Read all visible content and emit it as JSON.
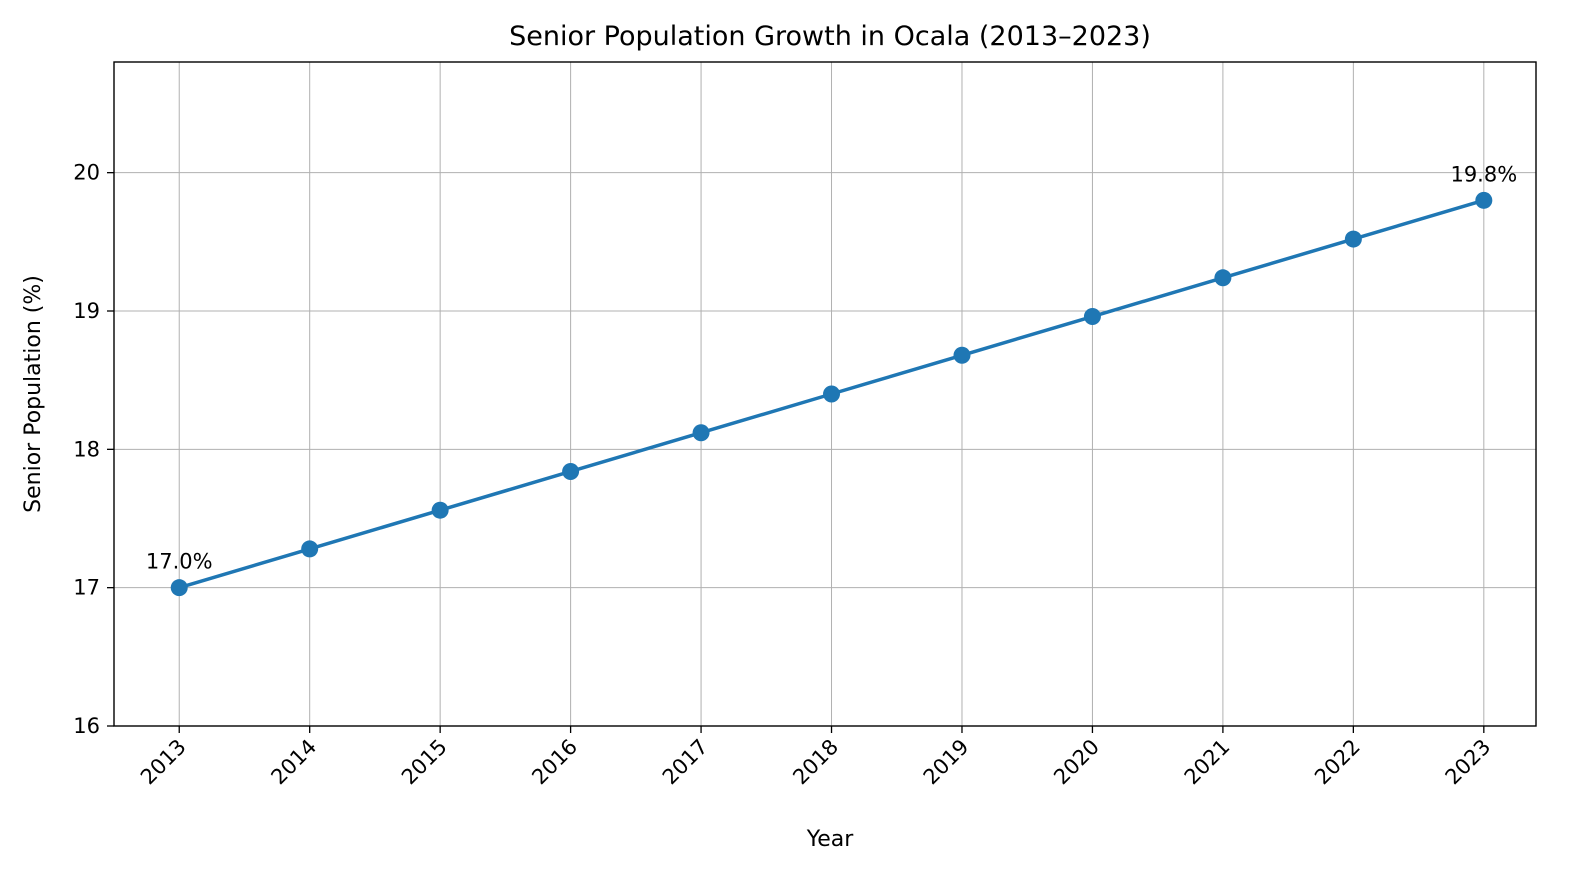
{
  "chart_data": {
    "type": "line",
    "title": "Senior Population Growth in Ocala (2013–2023)",
    "xlabel": "Year",
    "ylabel": "Senior Population (%)",
    "x": [
      2013,
      2014,
      2015,
      2016,
      2017,
      2018,
      2019,
      2020,
      2021,
      2022,
      2023
    ],
    "x_tick_labels": [
      "2013",
      "2014",
      "2015",
      "2016",
      "2017",
      "2018",
      "2019",
      "2020",
      "2021",
      "2022",
      "2023"
    ],
    "series": [
      {
        "values": [
          17.0,
          17.28,
          17.56,
          17.84,
          18.12,
          18.4,
          18.68,
          18.96,
          19.24,
          19.52,
          19.8
        ],
        "color": "#1f77b4",
        "marker": "circle"
      }
    ],
    "y_ticks": [
      16,
      17,
      18,
      19,
      20
    ],
    "ylim": [
      16,
      20.8
    ],
    "xlim": [
      2012.5,
      2023.4
    ],
    "grid": true,
    "x_tick_rotation": 45,
    "annotations": [
      {
        "x": 2013,
        "y": 17.0,
        "text": "17.0%"
      },
      {
        "x": 2023,
        "y": 19.8,
        "text": "19.8%"
      }
    ]
  }
}
